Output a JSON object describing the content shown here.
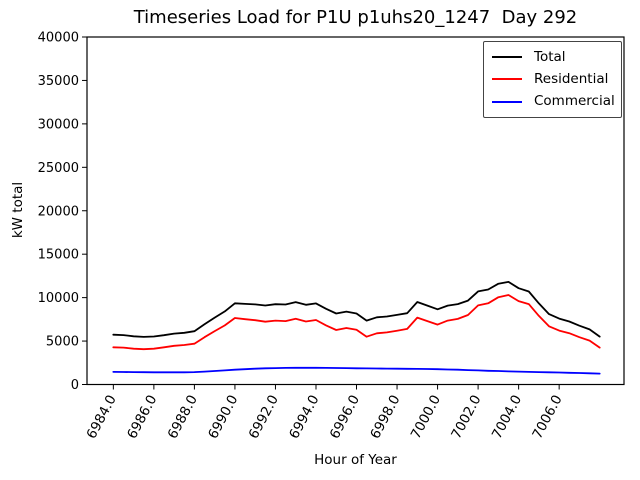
{
  "figure": {
    "title": "Timeseries Load for P1U p1uhs20_1247  Day 292",
    "xlabel": "Hour of Year",
    "ylabel": "kW total"
  },
  "chart_data": {
    "type": "line",
    "title": "Timeseries Load for P1U p1uhs20_1247  Day 292",
    "xlabel": "Hour of Year",
    "ylabel": "kW total",
    "xlim": [
      6982.7,
      7009.2
    ],
    "ylim": [
      0,
      40000
    ],
    "grid": false,
    "legend_position": "upper right",
    "background": "#ffffff",
    "axis_color": "#000000",
    "x": [
      6984.0,
      6984.5,
      6985.0,
      6985.5,
      6986.0,
      6986.5,
      6987.0,
      6987.5,
      6988.0,
      6988.5,
      6989.0,
      6989.5,
      6990.0,
      6990.5,
      6991.0,
      6991.5,
      6992.0,
      6992.5,
      6993.0,
      6993.5,
      6994.0,
      6994.5,
      6995.0,
      6995.5,
      6996.0,
      6996.5,
      6997.0,
      6997.5,
      6998.0,
      6998.5,
      6999.0,
      6999.5,
      7000.0,
      7000.5,
      7001.0,
      7001.5,
      7002.0,
      7002.5,
      7003.0,
      7003.5,
      7004.0,
      7004.5,
      7005.0,
      7005.5,
      7006.0,
      7006.5,
      7007.0,
      7007.5,
      7008.0
    ],
    "series": [
      {
        "name": "Total",
        "color": "#000000",
        "values": [
          5730,
          5690,
          5550,
          5480,
          5530,
          5680,
          5860,
          5950,
          6130,
          6930,
          7700,
          8420,
          9350,
          9280,
          9220,
          9090,
          9240,
          9210,
          9480,
          9170,
          9340,
          8710,
          8170,
          8390,
          8170,
          7350,
          7730,
          7830,
          8015,
          8210,
          9500,
          9080,
          8660,
          9080,
          9250,
          9660,
          10720,
          10930,
          11600,
          11810,
          11080,
          10700,
          9330,
          8100,
          7580,
          7250,
          6770,
          6340,
          5510
        ]
      },
      {
        "name": "Residential",
        "color": "#ff0000",
        "values": [
          4280,
          4250,
          4120,
          4060,
          4120,
          4280,
          4460,
          4550,
          4700,
          5450,
          6150,
          6800,
          7650,
          7520,
          7400,
          7230,
          7350,
          7300,
          7560,
          7250,
          7420,
          6800,
          6270,
          6500,
          6300,
          5500,
          5890,
          6000,
          6195,
          6400,
          7700,
          7300,
          6900,
          7350,
          7550,
          8000,
          9100,
          9350,
          10050,
          10300,
          9600,
          9250,
          7900,
          6700,
          6200,
          5900,
          5450,
          5050,
          4250
        ]
      },
      {
        "name": "Commercial",
        "color": "#0000ff",
        "values": [
          1450,
          1440,
          1430,
          1420,
          1410,
          1400,
          1400,
          1400,
          1430,
          1480,
          1550,
          1620,
          1700,
          1760,
          1820,
          1860,
          1890,
          1910,
          1920,
          1920,
          1920,
          1910,
          1900,
          1890,
          1870,
          1850,
          1840,
          1830,
          1820,
          1810,
          1800,
          1780,
          1760,
          1730,
          1700,
          1660,
          1620,
          1580,
          1550,
          1510,
          1480,
          1450,
          1430,
          1400,
          1380,
          1350,
          1320,
          1290,
          1260
        ]
      }
    ],
    "yticks": {
      "values": [
        0,
        5000,
        10000,
        15000,
        20000,
        25000,
        30000,
        35000,
        40000
      ],
      "labels": [
        "0",
        "5000",
        "10000",
        "15000",
        "20000",
        "25000",
        "30000",
        "35000",
        "40000"
      ]
    },
    "xticks": {
      "values": [
        6984,
        6986,
        6988,
        6990,
        6992,
        6994,
        6996,
        6998,
        7000,
        7002,
        7004,
        7006
      ],
      "labels": [
        "6984.0",
        "6986.0",
        "6988.0",
        "6990.0",
        "6992.0",
        "6994.0",
        "6996.0",
        "6998.0",
        "7000.0",
        "7002.0",
        "7004.0",
        "7006.0"
      ],
      "rotation_deg": 62
    }
  }
}
